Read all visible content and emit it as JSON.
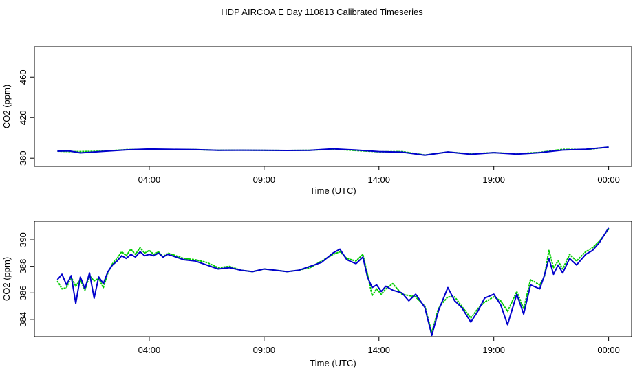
{
  "title": "HDP AIRCOA E  Day 110813  Calibrated Timeseries",
  "colors": {
    "series_green": "#00cc00",
    "series_blue": "#0000cc",
    "axis": "#000000"
  },
  "chart_data": [
    {
      "type": "line",
      "xlabel": "Time (UTC)",
      "ylabel": "CO2 (ppm)",
      "x_unit": "hours since 00:00 UTC (axis shown as HH:MM)",
      "xlim": [
        -1.0,
        25.0
      ],
      "ylim": [
        372,
        490
      ],
      "xticks": [
        {
          "v": 4,
          "label": "04:00"
        },
        {
          "v": 9,
          "label": "09:00"
        },
        {
          "v": 14,
          "label": "14:00"
        },
        {
          "v": 19,
          "label": "19:00"
        },
        {
          "v": 24,
          "label": "00:00"
        }
      ],
      "yticks": [
        {
          "v": 380,
          "label": "380"
        },
        {
          "v": 420,
          "label": "420"
        },
        {
          "v": 460,
          "label": "460"
        }
      ],
      "series": [
        {
          "color": "#00cc00",
          "x": [
            0.0,
            0.5,
            1.0,
            2.0,
            3.0,
            4.0,
            5.0,
            6.0,
            7.0,
            8.0,
            9.0,
            10.0,
            11.0,
            12.0,
            13.0,
            14.0,
            15.0,
            16.0,
            17.0,
            18.0,
            19.0,
            20.0,
            21.0,
            22.0,
            23.0,
            24.0
          ],
          "y": [
            386.9,
            386.5,
            386.5,
            386.9,
            388.4,
            388.7,
            388.5,
            388.4,
            387.8,
            387.9,
            387.7,
            387.6,
            387.8,
            388.9,
            387.5,
            386.3,
            386.5,
            383.2,
            386.1,
            384.3,
            385.5,
            384.4,
            385.8,
            388.7,
            388.5,
            390.9
          ]
        },
        {
          "color": "#0000cc",
          "x": [
            0.0,
            0.5,
            1.0,
            2.0,
            3.0,
            4.0,
            5.0,
            6.0,
            7.0,
            8.0,
            9.0,
            10.0,
            11.0,
            12.0,
            13.0,
            14.0,
            15.0,
            16.0,
            17.0,
            18.0,
            19.0,
            20.0,
            21.0,
            22.0,
            23.0,
            24.0
          ],
          "y": [
            386.9,
            387.2,
            385.2,
            386.7,
            388.2,
            389.0,
            388.7,
            388.5,
            387.7,
            387.9,
            387.8,
            387.6,
            387.7,
            389.2,
            388.0,
            386.5,
            386.0,
            383.0,
            386.2,
            383.9,
            385.5,
            384.0,
            385.5,
            388.0,
            388.8,
            390.9
          ]
        }
      ]
    },
    {
      "type": "line",
      "xlabel": "Time (UTC)",
      "ylabel": "CO2 (ppm)",
      "x_unit": "hours since 00:00 UTC (axis shown as HH:MM)",
      "xlim": [
        -1.0,
        25.0
      ],
      "ylim": [
        382.7,
        391.4
      ],
      "xticks": [
        {
          "v": 4,
          "label": "04:00"
        },
        {
          "v": 9,
          "label": "09:00"
        },
        {
          "v": 14,
          "label": "14:00"
        },
        {
          "v": 19,
          "label": "19:00"
        },
        {
          "v": 24,
          "label": "00:00"
        }
      ],
      "yticks": [
        {
          "v": 384,
          "label": "384"
        },
        {
          "v": 386,
          "label": "386"
        },
        {
          "v": 388,
          "label": "388"
        },
        {
          "v": 390,
          "label": "390"
        }
      ],
      "series": [
        {
          "color": "#00cc00",
          "x": [
            0.0,
            0.2,
            0.4,
            0.6,
            0.8,
            1.0,
            1.2,
            1.4,
            1.6,
            1.8,
            2.0,
            2.2,
            2.4,
            2.6,
            2.8,
            3.0,
            3.2,
            3.4,
            3.6,
            3.8,
            4.0,
            4.2,
            4.4,
            4.6,
            4.8,
            5.0,
            5.5,
            6.0,
            6.5,
            7.0,
            7.5,
            8.0,
            8.5,
            9.0,
            9.5,
            10.0,
            10.5,
            11.0,
            11.5,
            12.0,
            12.3,
            12.6,
            13.0,
            13.3,
            13.5,
            13.7,
            13.9,
            14.1,
            14.3,
            14.6,
            15.0,
            15.3,
            15.6,
            16.0,
            16.3,
            16.6,
            17.0,
            17.3,
            17.6,
            18.0,
            18.3,
            18.6,
            19.0,
            19.3,
            19.6,
            20.0,
            20.3,
            20.6,
            21.0,
            21.2,
            21.4,
            21.6,
            21.8,
            22.0,
            22.3,
            22.6,
            23.0,
            23.3,
            23.6,
            24.0
          ],
          "y": [
            386.9,
            386.3,
            386.4,
            387.2,
            386.5,
            387.0,
            386.2,
            387.3,
            386.9,
            387.1,
            386.4,
            387.5,
            388.2,
            388.6,
            389.1,
            388.8,
            389.3,
            388.9,
            389.4,
            389.0,
            389.2,
            388.9,
            389.1,
            388.7,
            389.0,
            388.9,
            388.6,
            388.5,
            388.3,
            387.9,
            388.0,
            387.7,
            387.6,
            387.8,
            387.7,
            387.6,
            387.7,
            387.9,
            388.4,
            388.9,
            389.1,
            388.6,
            388.4,
            388.9,
            387.4,
            385.8,
            386.3,
            385.9,
            386.3,
            386.7,
            385.9,
            385.8,
            385.7,
            385.0,
            383.0,
            384.9,
            385.7,
            385.7,
            385.0,
            384.1,
            384.8,
            385.3,
            385.7,
            385.4,
            384.6,
            386.1,
            384.8,
            387.0,
            386.6,
            387.2,
            389.2,
            387.9,
            388.4,
            387.8,
            388.9,
            388.4,
            389.1,
            389.4,
            389.9,
            390.8
          ]
        },
        {
          "color": "#0000cc",
          "x": [
            0.0,
            0.2,
            0.4,
            0.6,
            0.8,
            1.0,
            1.2,
            1.4,
            1.6,
            1.8,
            2.0,
            2.2,
            2.4,
            2.6,
            2.8,
            3.0,
            3.2,
            3.4,
            3.6,
            3.8,
            4.0,
            4.2,
            4.4,
            4.6,
            4.8,
            5.0,
            5.5,
            6.0,
            6.5,
            7.0,
            7.5,
            8.0,
            8.5,
            9.0,
            9.5,
            10.0,
            10.5,
            11.0,
            11.5,
            12.0,
            12.3,
            12.6,
            13.0,
            13.3,
            13.5,
            13.7,
            13.9,
            14.1,
            14.3,
            14.6,
            15.0,
            15.3,
            15.6,
            16.0,
            16.3,
            16.6,
            17.0,
            17.3,
            17.6,
            18.0,
            18.3,
            18.6,
            19.0,
            19.3,
            19.6,
            20.0,
            20.3,
            20.6,
            21.0,
            21.2,
            21.4,
            21.6,
            21.8,
            22.0,
            22.3,
            22.6,
            23.0,
            23.3,
            23.6,
            24.0
          ],
          "y": [
            387.0,
            387.4,
            386.6,
            387.3,
            385.2,
            387.2,
            386.3,
            387.5,
            385.6,
            387.2,
            386.7,
            387.6,
            388.1,
            388.4,
            388.8,
            388.6,
            388.9,
            388.7,
            389.1,
            388.8,
            388.9,
            388.8,
            389.0,
            388.7,
            388.9,
            388.8,
            388.5,
            388.4,
            388.1,
            387.8,
            387.9,
            387.7,
            387.6,
            387.8,
            387.7,
            387.6,
            387.7,
            388.0,
            388.3,
            389.0,
            389.3,
            388.5,
            388.2,
            388.7,
            387.2,
            386.4,
            386.6,
            386.1,
            386.5,
            386.2,
            386.0,
            385.4,
            385.9,
            384.9,
            382.8,
            384.7,
            386.4,
            385.4,
            384.9,
            383.8,
            384.6,
            385.6,
            385.9,
            385.1,
            383.6,
            385.9,
            384.4,
            386.6,
            386.3,
            387.3,
            388.6,
            387.4,
            388.1,
            387.5,
            388.6,
            388.1,
            388.9,
            389.2,
            389.8,
            390.9
          ]
        }
      ]
    }
  ]
}
